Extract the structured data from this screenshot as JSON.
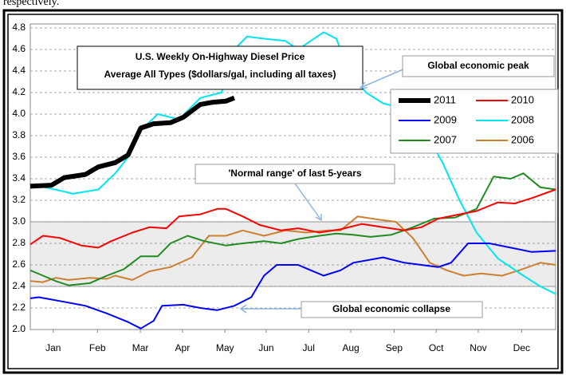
{
  "context_text": "respectively.",
  "chart_data": {
    "type": "line",
    "title": "U.S. Weekly On-Highway Diesel Price",
    "subtitle": "Average All Types ($dollars/gal, including all taxes)",
    "annotations": [
      "Global economic peak",
      "'Normal range' of last 5-years",
      "Global economic collapse"
    ],
    "band": [
      2.4,
      3.0
    ],
    "xlim": [
      0,
      12.36
    ],
    "xticks": [
      {
        "value": 0.54,
        "label": "Jan"
      },
      {
        "value": 1.58,
        "label": "Feb"
      },
      {
        "value": 2.59,
        "label": "Mar"
      },
      {
        "value": 3.58,
        "label": "Apr"
      },
      {
        "value": 4.58,
        "label": "May"
      },
      {
        "value": 5.55,
        "label": "Jun"
      },
      {
        "value": 6.55,
        "label": "Jul"
      },
      {
        "value": 7.54,
        "label": "Aug"
      },
      {
        "value": 8.56,
        "label": "Sep"
      },
      {
        "value": 9.55,
        "label": "Oct"
      },
      {
        "value": 10.54,
        "label": "Nov"
      },
      {
        "value": 11.56,
        "label": "Dec"
      }
    ],
    "ylim": [
      2.0,
      4.8
    ],
    "yticks": [
      {
        "value": 2.0,
        "label": "2.0"
      },
      2.2,
      2.4,
      2.6,
      2.8,
      {
        "value": 3.0,
        "label": "3.0"
      },
      3.2,
      3.4,
      3.6,
      3.8,
      {
        "value": 4.0,
        "label": "4.0"
      },
      4.2,
      4.4,
      4.6,
      4.8
    ],
    "grid": true,
    "legend": "upper right",
    "series": [
      {
        "name": "2011",
        "color": "#000000",
        "x": [
          0,
          0.5,
          0.8,
          1.3,
          1.6,
          2.0,
          2.3,
          2.6,
          2.9,
          3.3,
          3.6,
          4.0,
          4.3,
          4.6,
          4.8
        ],
        "values": [
          3.33,
          3.34,
          3.41,
          3.44,
          3.51,
          3.55,
          3.62,
          3.87,
          3.91,
          3.92,
          3.97,
          4.09,
          4.11,
          4.12,
          4.15
        ]
      },
      {
        "name": "2010",
        "color": "#ff0000",
        "x": [
          0,
          0.3,
          0.7,
          1.2,
          1.6,
          1.9,
          2.4,
          2.8,
          3.2,
          3.5,
          4.0,
          4.4,
          4.6,
          5.0,
          5.4,
          5.9,
          6.3,
          6.8,
          7.3,
          7.8,
          8.3,
          8.8,
          9.2,
          9.6,
          10.1,
          10.5,
          11.0,
          11.4,
          11.8,
          12.36
        ],
        "values": [
          2.79,
          2.87,
          2.85,
          2.78,
          2.76,
          2.82,
          2.9,
          2.95,
          2.94,
          3.05,
          3.07,
          3.12,
          3.12,
          3.05,
          2.97,
          2.92,
          2.94,
          2.9,
          2.93,
          2.98,
          2.95,
          2.92,
          2.95,
          3.03,
          3.07,
          3.1,
          3.18,
          3.17,
          3.22,
          3.3
        ]
      },
      {
        "name": "2009",
        "color": "#0000ff",
        "x": [
          0,
          0.2,
          0.9,
          1.3,
          1.8,
          2.3,
          2.6,
          2.9,
          3.1,
          3.6,
          4.0,
          4.4,
          4.8,
          5.2,
          5.5,
          5.8,
          6.3,
          6.9,
          7.3,
          7.6,
          8.3,
          8.8,
          9.2,
          9.6,
          9.9,
          10.3,
          10.8,
          11.3,
          11.8,
          12.36
        ],
        "values": [
          2.29,
          2.3,
          2.25,
          2.22,
          2.15,
          2.07,
          2.01,
          2.08,
          2.22,
          2.23,
          2.2,
          2.18,
          2.22,
          2.3,
          2.5,
          2.6,
          2.6,
          2.5,
          2.55,
          2.62,
          2.67,
          2.62,
          2.6,
          2.58,
          2.62,
          2.8,
          2.8,
          2.76,
          2.72,
          2.73
        ]
      },
      {
        "name": "2008",
        "color": "#00e5ee",
        "x": [
          0,
          0.8,
          1.0,
          1.6,
          2.0,
          2.3,
          2.6,
          3.0,
          3.5,
          4.0,
          4.5,
          4.8,
          5.1,
          5.5,
          6.0,
          6.3,
          6.9,
          7.2,
          7.5,
          7.9,
          8.3,
          8.8,
          9.2,
          9.7,
          10.1,
          10.5,
          11.0,
          11.6,
          12.0,
          12.36
        ],
        "values": [
          3.35,
          3.28,
          3.26,
          3.3,
          3.45,
          3.6,
          3.85,
          4.0,
          3.95,
          4.15,
          4.2,
          4.6,
          4.72,
          4.7,
          4.68,
          4.6,
          4.76,
          4.7,
          4.4,
          4.2,
          4.1,
          4.05,
          3.9,
          3.55,
          3.2,
          2.9,
          2.66,
          2.5,
          2.4,
          2.33
        ]
      },
      {
        "name": "2007",
        "color": "#228b22",
        "x": [
          0,
          0.3,
          0.6,
          0.9,
          1.4,
          1.8,
          2.2,
          2.6,
          3.0,
          3.3,
          3.7,
          4.1,
          4.6,
          5.0,
          5.5,
          5.9,
          6.3,
          6.8,
          7.2,
          7.6,
          8.0,
          8.5,
          9.0,
          9.5,
          10.0,
          10.5,
          10.9,
          11.3,
          11.6,
          12.0,
          12.36
        ],
        "values": [
          2.55,
          2.5,
          2.45,
          2.41,
          2.43,
          2.5,
          2.56,
          2.68,
          2.68,
          2.8,
          2.87,
          2.82,
          2.78,
          2.8,
          2.82,
          2.8,
          2.84,
          2.87,
          2.89,
          2.88,
          2.86,
          2.88,
          2.95,
          3.03,
          3.04,
          3.12,
          3.42,
          3.4,
          3.45,
          3.32,
          3.3
        ]
      },
      {
        "name": "2006",
        "color": "#cd7f32",
        "x": [
          0,
          0.3,
          0.6,
          0.9,
          1.4,
          1.8,
          2.0,
          2.4,
          2.8,
          3.3,
          3.8,
          4.2,
          4.6,
          5.0,
          5.5,
          6.0,
          6.5,
          7.0,
          7.3,
          7.7,
          8.2,
          8.6,
          9.0,
          9.4,
          9.8,
          10.2,
          10.6,
          11.1,
          11.5,
          12.0,
          12.36
        ],
        "values": [
          2.45,
          2.44,
          2.48,
          2.46,
          2.48,
          2.47,
          2.5,
          2.46,
          2.54,
          2.58,
          2.67,
          2.87,
          2.87,
          2.92,
          2.87,
          2.92,
          2.9,
          2.92,
          2.92,
          3.05,
          3.02,
          3.0,
          2.85,
          2.62,
          2.55,
          2.5,
          2.52,
          2.5,
          2.55,
          2.62,
          2.6
        ]
      }
    ]
  }
}
